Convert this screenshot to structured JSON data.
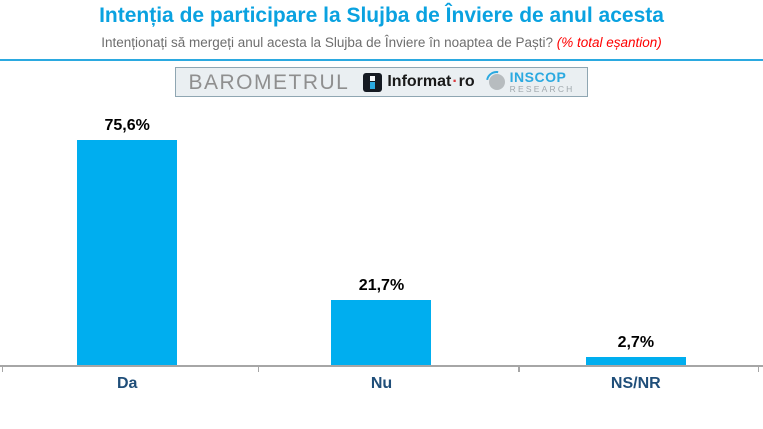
{
  "header": {
    "title": "Intenția de participare la Slujba de Înviere de anul acesta",
    "subtitle": "Intenționați să mergeți anul acesta la Slujba de Înviere în noaptea de Paști? ",
    "subtitle_note": "(% total eșantion)"
  },
  "logos": {
    "barometrul_label": "BAROMETRUL",
    "informat": {
      "text_main": "Informat",
      "separator": "·",
      "text_suffix": "ro",
      "icon": "informat-i-icon"
    },
    "inscop": {
      "name": "INSCOP",
      "sub": "RESEARCH",
      "icon": "inscop-globe-icon"
    }
  },
  "colors": {
    "title_blue": "#0AA2E0",
    "bar_cyan": "#00AEEF",
    "divider_blue": "#2BA9E0",
    "category_navy": "#1F4E79",
    "note_red": "#FF0000",
    "axis_gray": "#A6A6A6",
    "logo_box_bg": "#EAEFF2"
  },
  "chart_data": {
    "type": "bar",
    "title": "Intenția de participare la Slujba de Înviere de anul acesta",
    "subtitle": "Intenționați să mergeți anul acesta la Slujba de Înviere în noaptea de Paști? (% total eșantion)",
    "categories": [
      "Da",
      "Nu",
      "NS/NR"
    ],
    "values": [
      75.6,
      21.7,
      2.7
    ],
    "value_labels": [
      "75,6%",
      "21,7%",
      "2,7%"
    ],
    "xlabel": "",
    "ylabel": "",
    "ylim": [
      0,
      100
    ],
    "grid": false,
    "legend": false,
    "bar_color": "#00AEEF",
    "data_label_position": "above-bar"
  }
}
